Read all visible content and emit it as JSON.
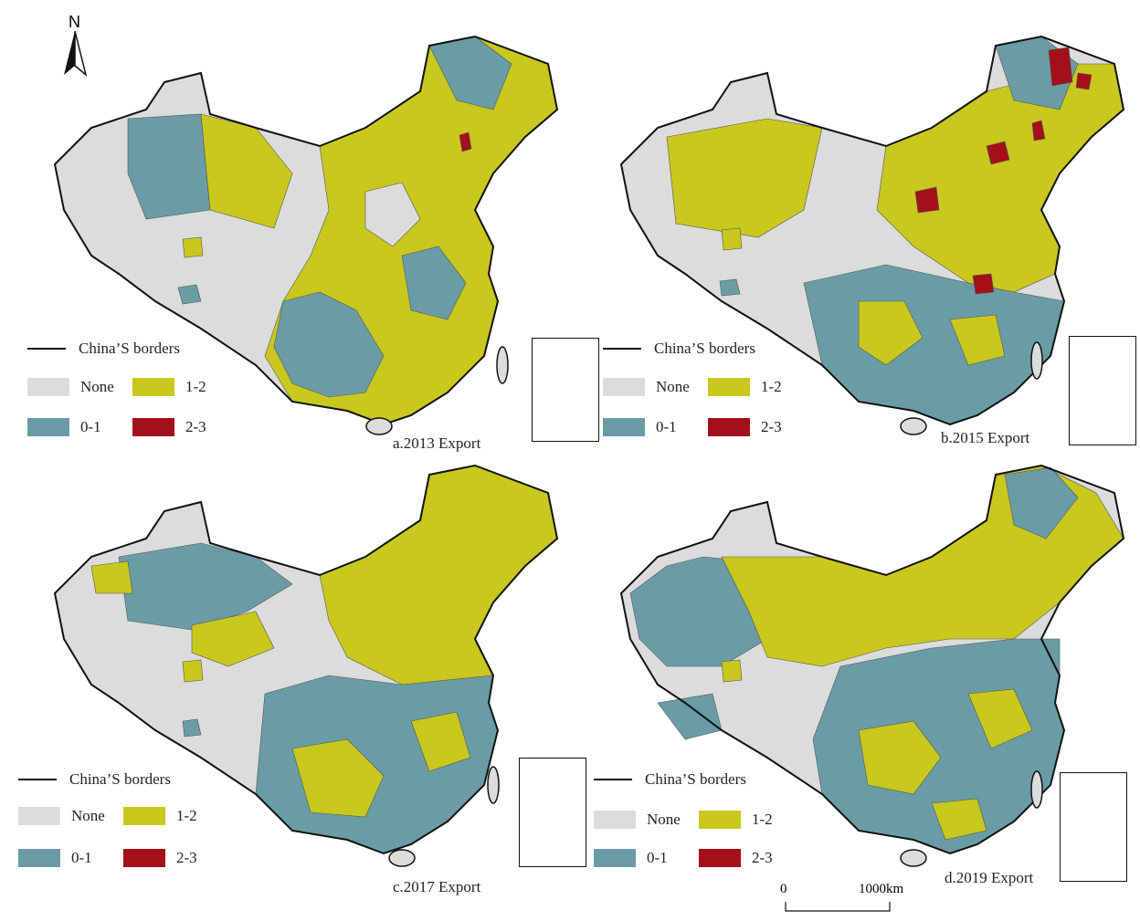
{
  "north_label": "N",
  "colors": {
    "none": "#dcdcdc",
    "c01": "#6a9ca5",
    "c12": "#c8c81e",
    "c23": "#a30f1a",
    "border": "#111111"
  },
  "legend": {
    "border_label": "China’S borders",
    "none_label": "None",
    "c01_label": "0-1",
    "c12_label": "1-2",
    "c23_label": "2-3"
  },
  "panels": [
    {
      "id": "a",
      "caption": "a.2013 Export"
    },
    {
      "id": "b",
      "caption": "b.2015 Export"
    },
    {
      "id": "c",
      "caption": "c.2017 Export"
    },
    {
      "id": "d",
      "caption": "d.2019 Export"
    }
  ],
  "scale": {
    "start": "0",
    "end": "1000km"
  }
}
